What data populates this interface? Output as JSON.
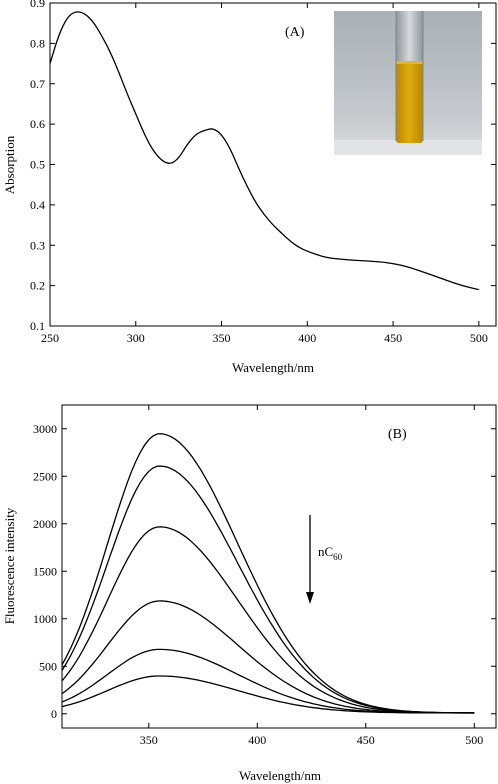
{
  "chart_data": [
    {
      "type": "line",
      "panel_label": "(A)",
      "xlabel": "Wavelength/nm",
      "ylabel": "Absorption",
      "xlim": [
        250,
        510
      ],
      "ylim": [
        0.1,
        0.9
      ],
      "x_ticks": [
        250,
        300,
        350,
        400,
        450,
        500
      ],
      "y_ticks": [
        0.1,
        0.2,
        0.3,
        0.4,
        0.5,
        0.6,
        0.7,
        0.8,
        0.9
      ],
      "x_tick_labels": [
        "250",
        "300",
        "350",
        "400",
        "450",
        "500"
      ],
      "y_tick_labels": [
        "0.1",
        "0.2",
        "0.3",
        "0.4",
        "0.5",
        "0.6",
        "0.7",
        "0.8",
        "0.9"
      ],
      "grid": false,
      "inset": "photo of test tube containing yellow solution",
      "series": [
        {
          "x": [
            250,
            255,
            260,
            265,
            270,
            275,
            280,
            285,
            290,
            295,
            300,
            305,
            310,
            315,
            320,
            325,
            330,
            335,
            340,
            345,
            350,
            355,
            360,
            365,
            370,
            375,
            380,
            385,
            390,
            395,
            400,
            410,
            420,
            430,
            440,
            450,
            460,
            470,
            480,
            490,
            500
          ],
          "y": [
            0.75,
            0.82,
            0.865,
            0.88,
            0.875,
            0.855,
            0.82,
            0.78,
            0.73,
            0.675,
            0.625,
            0.575,
            0.535,
            0.51,
            0.5,
            0.515,
            0.55,
            0.575,
            0.585,
            0.59,
            0.575,
            0.54,
            0.49,
            0.445,
            0.405,
            0.375,
            0.35,
            0.33,
            0.31,
            0.295,
            0.285,
            0.27,
            0.265,
            0.262,
            0.26,
            0.255,
            0.245,
            0.23,
            0.215,
            0.2,
            0.19
          ]
        }
      ]
    },
    {
      "type": "line",
      "panel_label": "(B)",
      "xlabel": "Wavelength/nm",
      "ylabel": "Fluorescence intensity",
      "annotation": "nC",
      "annotation_sub": "60",
      "xlim": [
        310,
        510
      ],
      "ylim": [
        -150,
        3250
      ],
      "x_ticks": [
        350,
        400,
        450,
        500
      ],
      "y_ticks": [
        0,
        500,
        1000,
        1500,
        2000,
        2500,
        3000
      ],
      "x_tick_labels": [
        "350",
        "400",
        "450",
        "500"
      ],
      "y_tick_labels": [
        "0",
        "500",
        "1000",
        "1500",
        "2000",
        "2500",
        "3000"
      ],
      "grid": false,
      "peak_x": 355,
      "series_peaks": [
        2940,
        2600,
        1960,
        1180,
        670,
        390
      ]
    }
  ]
}
